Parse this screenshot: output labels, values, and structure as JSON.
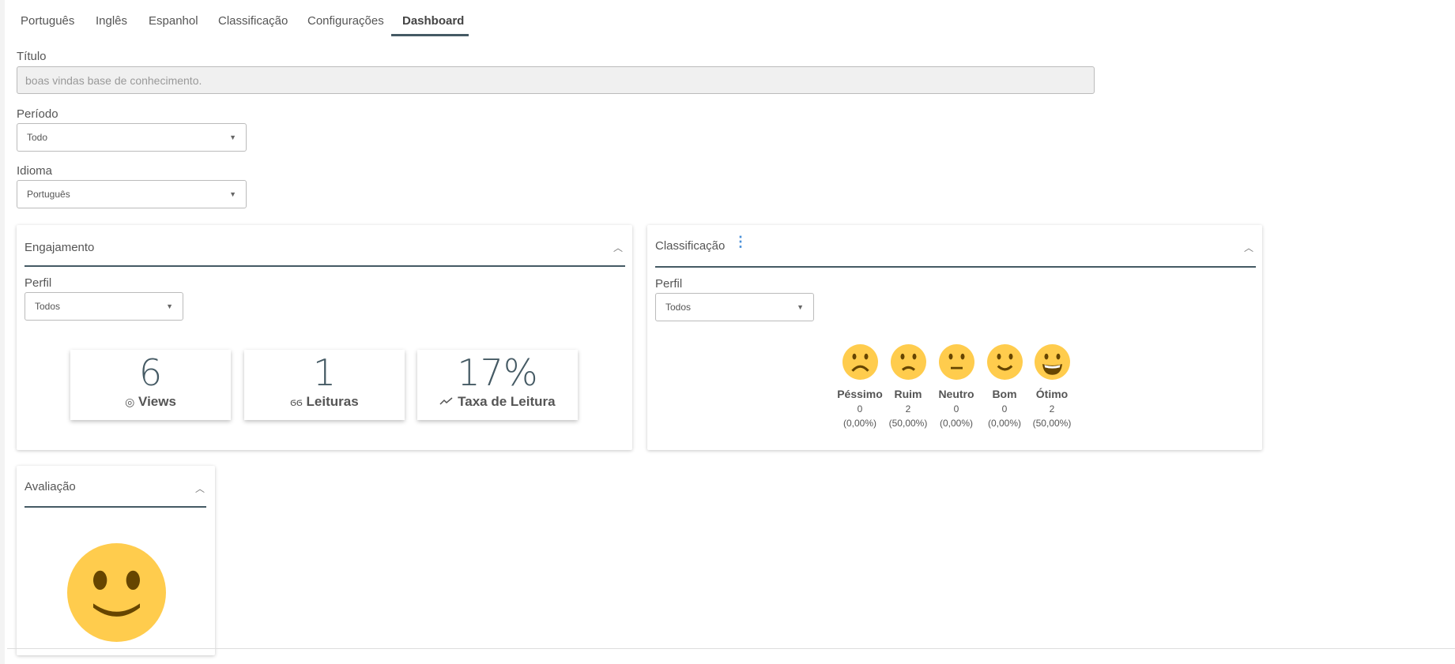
{
  "tabs": [
    {
      "label": "Português"
    },
    {
      "label": "Inglês"
    },
    {
      "label": "Espanhol"
    },
    {
      "label": "Classificação"
    },
    {
      "label": "Configurações"
    },
    {
      "label": "Dashboard",
      "active": true
    }
  ],
  "form": {
    "title_label": "Título",
    "title_value": "boas vindas base de conhecimento.",
    "period_label": "Período",
    "period_value": "Todo",
    "language_label": "Idioma",
    "language_value": "Português"
  },
  "engagement": {
    "title": "Engajamento",
    "profile_label": "Perfil",
    "profile_value": "Todos",
    "stats": [
      {
        "value": "6",
        "label": "Views",
        "icon": "eye-icon"
      },
      {
        "value": "1",
        "label": "Leituras",
        "icon": "glasses-icon"
      },
      {
        "value": "17%",
        "label": "Taxa de Leitura",
        "icon": "trend-line-icon"
      }
    ]
  },
  "classification": {
    "title": "Classificação",
    "profile_label": "Perfil",
    "profile_value": "Todos",
    "ratings": [
      {
        "label": "Péssimo",
        "count": "0",
        "percent": "(0,00%)",
        "icon": "very-sad-face-icon"
      },
      {
        "label": "Ruim",
        "count": "2",
        "percent": "(50,00%)",
        "icon": "sad-face-icon"
      },
      {
        "label": "Neutro",
        "count": "0",
        "percent": "(0,00%)",
        "icon": "neutral-face-icon"
      },
      {
        "label": "Bom",
        "count": "0",
        "percent": "(0,00%)",
        "icon": "smile-face-icon"
      },
      {
        "label": "Ótimo",
        "count": "2",
        "percent": "(50,00%)",
        "icon": "grin-face-icon"
      }
    ]
  },
  "evaluation": {
    "title": "Avaliação",
    "icon": "smile-face-icon"
  },
  "colors": {
    "accent": "#455a64",
    "emoji": "#ffcc4d",
    "emoji_feature": "#664500"
  }
}
